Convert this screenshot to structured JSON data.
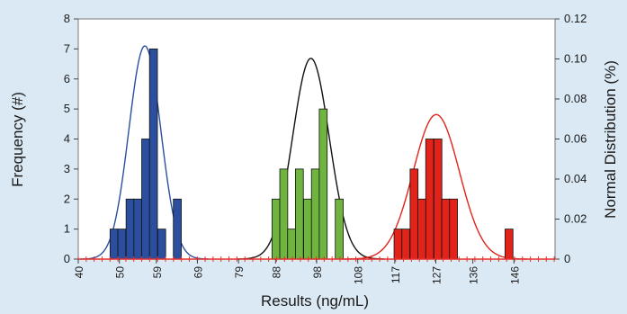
{
  "chart_data": {
    "type": "bar",
    "title": "",
    "xlabel": "Results (ng/mL)",
    "ylabel": "Frequency (#)",
    "y2label": "Normal Distribution (%)",
    "xlim": [
      40,
      156
    ],
    "ylim": [
      0,
      8
    ],
    "y2lim": [
      0,
      0.12
    ],
    "x_ticks": [
      40,
      50,
      59,
      69,
      79,
      88,
      98,
      108,
      117,
      127,
      136,
      146
    ],
    "y_ticks": [
      0,
      1,
      2,
      3,
      4,
      5,
      6,
      7,
      8
    ],
    "y2_ticks": [
      "0",
      "0.02",
      "0.04",
      "0.06",
      "0.08",
      "0.10",
      "0.12"
    ],
    "grid": false,
    "bar_width": 1.93,
    "baseline_color": "#e8302a",
    "series": [
      {
        "color": "#2b4f9e",
        "bars": [
          {
            "x": 48.7,
            "y": 1
          },
          {
            "x": 50.6,
            "y": 1
          },
          {
            "x": 52.6,
            "y": 2
          },
          {
            "x": 54.5,
            "y": 2
          },
          {
            "x": 56.4,
            "y": 4
          },
          {
            "x": 58.3,
            "y": 7
          },
          {
            "x": 60.3,
            "y": 1
          },
          {
            "x": 64.1,
            "y": 2
          }
        ],
        "curve": {
          "mean": 56.2,
          "sd": 3.89,
          "peak": 0.1065,
          "color": "#2b4f9e"
        }
      },
      {
        "color": "#6fb43f",
        "bars": [
          {
            "x": 88.1,
            "y": 2
          },
          {
            "x": 90.0,
            "y": 3
          },
          {
            "x": 91.9,
            "y": 1
          },
          {
            "x": 93.8,
            "y": 3
          },
          {
            "x": 95.8,
            "y": 2
          },
          {
            "x": 97.7,
            "y": 3
          },
          {
            "x": 99.6,
            "y": 5
          },
          {
            "x": 103.5,
            "y": 2
          }
        ],
        "curve": {
          "mean": 96.6,
          "sd": 4.47,
          "peak": 0.1003,
          "color": "#111111"
        }
      },
      {
        "color": "#e2231a",
        "bars": [
          {
            "x": 117.8,
            "y": 1
          },
          {
            "x": 119.7,
            "y": 1
          },
          {
            "x": 121.7,
            "y": 3
          },
          {
            "x": 123.6,
            "y": 2
          },
          {
            "x": 125.5,
            "y": 4
          },
          {
            "x": 127.5,
            "y": 4
          },
          {
            "x": 129.4,
            "y": 2
          },
          {
            "x": 131.3,
            "y": 2
          },
          {
            "x": 144.8,
            "y": 1
          }
        ],
        "curve": {
          "mean": 127.1,
          "sd": 5.62,
          "peak": 0.0722,
          "color": "#e2231a"
        }
      }
    ]
  }
}
